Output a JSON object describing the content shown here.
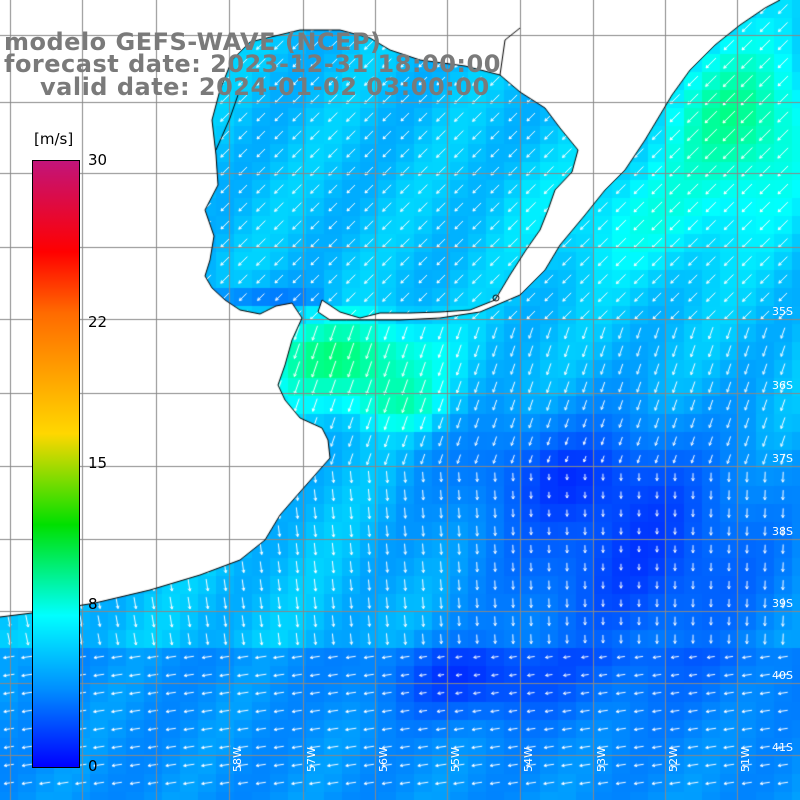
{
  "titles": {
    "line1": "modelo GEFS-WAVE (NCEP)",
    "line2": "forecast date: 2023-12-31 18:00:00",
    "line3": "valid date: 2024-01-02 03:00:00"
  },
  "colorbar": {
    "unit": "[m/s]",
    "ticks": [
      {
        "value": 30,
        "label": "30"
      },
      {
        "value": 22,
        "label": "22"
      },
      {
        "value": 15,
        "label": "15"
      },
      {
        "value": 8,
        "label": "8"
      },
      {
        "value": 0,
        "label": "0"
      }
    ],
    "colors": [
      "#c2147a",
      "#ff0000",
      "#ff6a00",
      "#ffd700",
      "#00e000",
      "#00ffff",
      "#0090ff",
      "#0000ff"
    ]
  },
  "grid": {
    "lat_labels": [
      "35S",
      "36S",
      "37S",
      "38S",
      "39S",
      "40S",
      "41S"
    ],
    "lon_labels": [
      "58W",
      "57W",
      "56W",
      "55W",
      "54W",
      "53W",
      "52W",
      "51W"
    ]
  },
  "map": {
    "field": "wind speed",
    "land_color": "#ffffff",
    "coast_color": "#000000",
    "grid_color": "#888888",
    "arrow_color": "#ffffff"
  }
}
